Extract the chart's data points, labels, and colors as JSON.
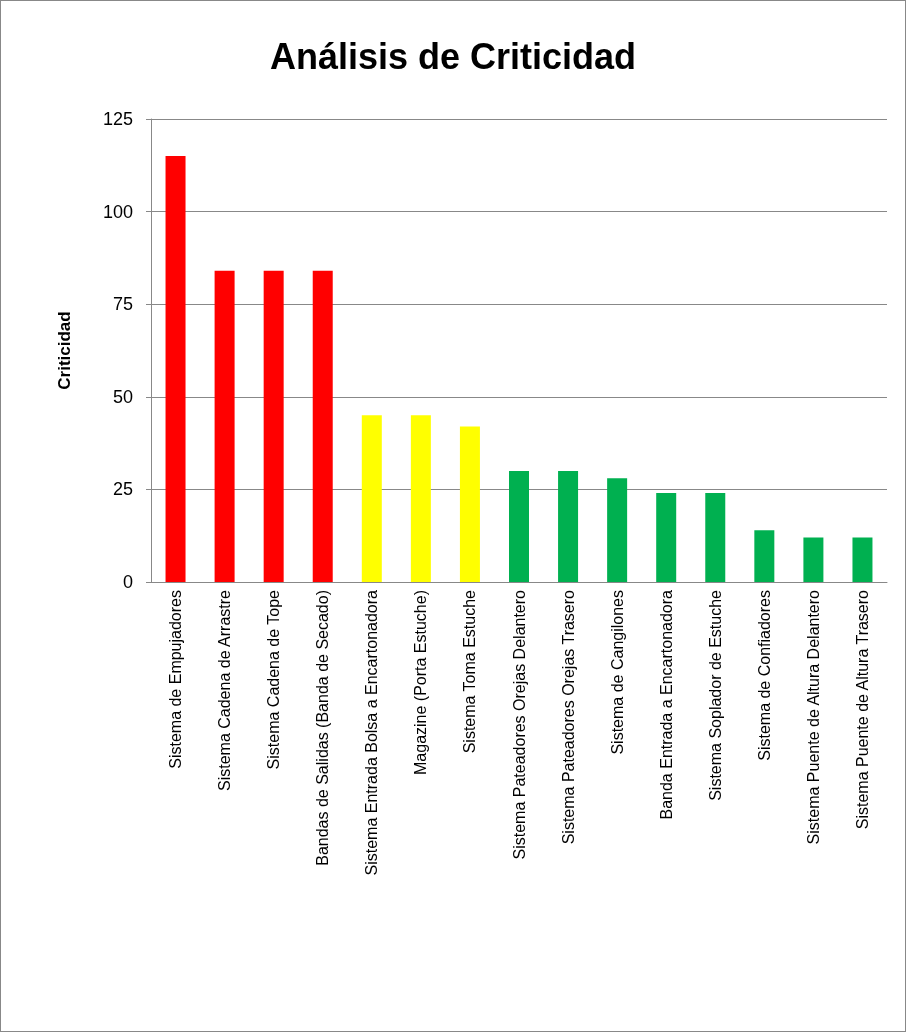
{
  "chart_data": {
    "type": "bar",
    "title": "Análisis de Criticidad",
    "ylabel": "Criticidad",
    "categories": [
      "Sistema de Empujadores",
      "Sistema Cadena de Arrastre",
      "Sistema Cadena de Tope",
      "Bandas de Salidas (Banda de Secado)",
      "Sistema Entrada Bolsa a Encartonadora",
      "Magazine (Porta Estuche)",
      "Sistema Toma Estuche",
      "Sistema Pateadores Orejas Delantero",
      "Sistema Pateadores Orejas Trasero",
      "Sistema de Cangilones",
      "Banda Entrada a Encartonadora",
      "Sistema Soplador de Estuche",
      "Sistema de Confiadores",
      "Sistema Puente de Altura Delantero",
      "Sistema Puente de Altura Trasero"
    ],
    "values": [
      115,
      84,
      84,
      84,
      45,
      45,
      42,
      30,
      30,
      28,
      24,
      24,
      14,
      12,
      12
    ],
    "colors": [
      "#ff0000",
      "#ff0000",
      "#ff0000",
      "#ff0000",
      "#ffff00",
      "#ffff00",
      "#ffff00",
      "#00b050",
      "#00b050",
      "#00b050",
      "#00b050",
      "#00b050",
      "#00b050",
      "#00b050",
      "#00b050"
    ],
    "ylim": [
      0,
      125
    ],
    "yticks": [
      0,
      25,
      50,
      75,
      100,
      125
    ],
    "grid": "y"
  }
}
